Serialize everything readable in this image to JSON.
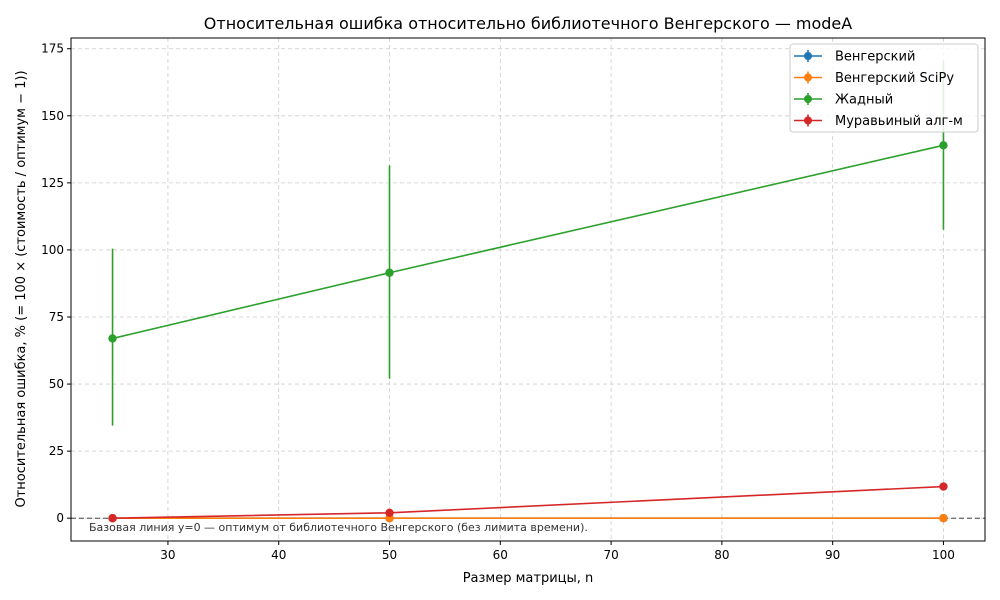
{
  "chart_data": {
    "type": "line",
    "title": "Относительная ошибка относительно библиотечного Венгерского — modeA",
    "xlabel": "Размер матрицы, n",
    "ylabel": "Относительная ошибка, %  (= 100 × (стоимость / оптимум − 1))",
    "xlim": [
      21.25,
      103.75
    ],
    "ylim": [
      -8.5,
      179
    ],
    "x_ticks": [
      30,
      40,
      50,
      60,
      70,
      80,
      90,
      100
    ],
    "y_ticks": [
      0,
      25,
      50,
      75,
      100,
      125,
      150,
      175
    ],
    "grid": true,
    "legend_position": "top-right",
    "x": [
      25,
      50,
      100
    ],
    "series": [
      {
        "name": "Венгерский",
        "color": "#1f77b4",
        "values": [
          0,
          0,
          0
        ],
        "err": [
          0,
          0,
          0
        ]
      },
      {
        "name": "Венгерский SciPy",
        "color": "#ff7f0e",
        "values": [
          0,
          0,
          0
        ],
        "err": [
          0,
          0,
          0
        ]
      },
      {
        "name": "Жадный",
        "color": "#2ca02c",
        "values": [
          67,
          91.5,
          139
        ],
        "err_low": [
          34.5,
          52,
          107.5
        ],
        "err_high": [
          100.5,
          131.5,
          170.5
        ]
      },
      {
        "name": "Муравьиный алг-м",
        "color": "#d62728",
        "values": [
          0,
          2,
          11.8
        ],
        "err": [
          0,
          0,
          0
        ]
      }
    ],
    "baseline": {
      "y": 0,
      "style": "dashed"
    },
    "annotation": "Базовая линия y=0 — оптимум от библиотечного Венгерского (без лимита времени)."
  }
}
